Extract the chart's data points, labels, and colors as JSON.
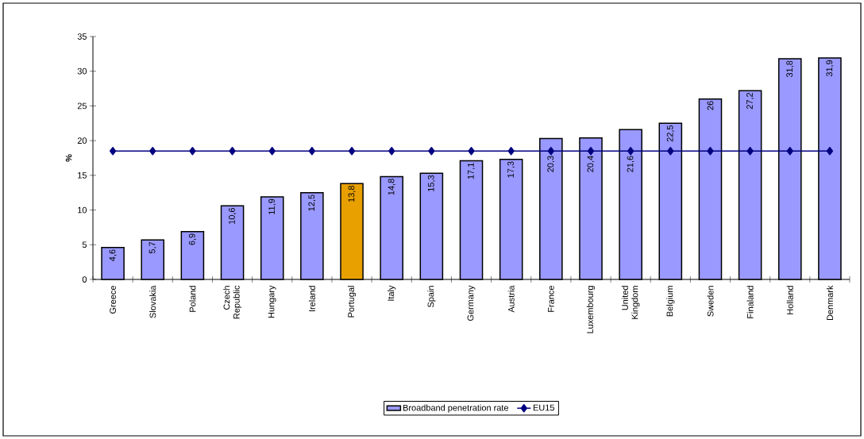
{
  "chart_data": {
    "type": "bar",
    "ylabel": "%",
    "categories": [
      "Greece",
      "Slovakia",
      "Poland",
      "Czech Republic",
      "Hungary",
      "Ireland",
      "Portugal",
      "Italy",
      "Spain",
      "Germany",
      "Austria",
      "France",
      "Luxembourg",
      "United Kingdom",
      "Belgium",
      "Sweden",
      "Finaland",
      "Holland",
      "Denmark"
    ],
    "series": [
      {
        "name": "Broadband penetration rate",
        "color": "#9999ff",
        "colors": [
          "#9999ff",
          "#9999ff",
          "#9999ff",
          "#9999ff",
          "#9999ff",
          "#9999ff",
          "#e8a000",
          "#9999ff",
          "#9999ff",
          "#9999ff",
          "#9999ff",
          "#9999ff",
          "#9999ff",
          "#9999ff",
          "#9999ff",
          "#9999ff",
          "#9999ff",
          "#9999ff",
          "#9999ff"
        ],
        "values": [
          4.6,
          5.7,
          6.9,
          10.6,
          11.9,
          12.5,
          13.8,
          14.8,
          15.3,
          17.1,
          17.3,
          20.3,
          20.4,
          21.6,
          22.5,
          26,
          27.2,
          31.8,
          31.9
        ],
        "value_labels": [
          "4,6",
          "5,7",
          "6,9",
          "10,6",
          "11,9",
          "12,5",
          "13,8",
          "14,8",
          "15,3",
          "17,1",
          "17,3",
          "20,3",
          "20,4",
          "21,6",
          "22,5",
          "26",
          "27,2",
          "31,8",
          "31,9"
        ]
      },
      {
        "name": "EU15",
        "type": "line",
        "color": "#000080",
        "marker": "diamond",
        "values": [
          18.5,
          18.5,
          18.5,
          18.5,
          18.5,
          18.5,
          18.5,
          18.5,
          18.5,
          18.5,
          18.5,
          18.5,
          18.5,
          18.5,
          18.5,
          18.5,
          18.5,
          18.5,
          18.5
        ]
      }
    ],
    "ylim": [
      0,
      35
    ],
    "yticks": [
      0,
      5,
      10,
      15,
      20,
      25,
      30,
      35
    ],
    "grid": false,
    "legend": "bottom"
  }
}
